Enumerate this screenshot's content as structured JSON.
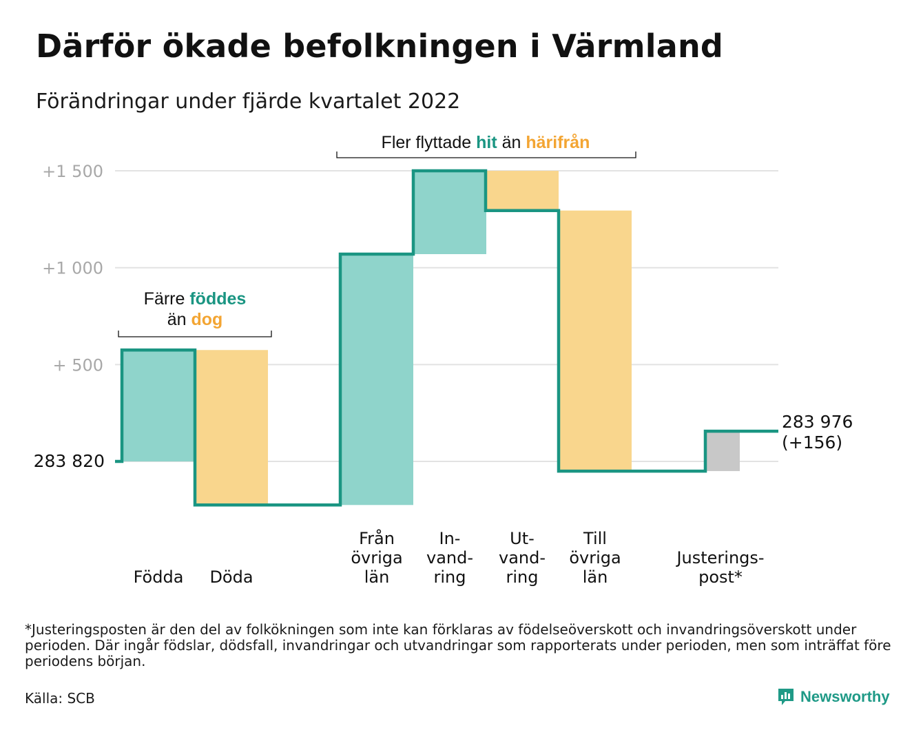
{
  "title": "Därför ökade befolkningen i Värmland",
  "subtitle": "Förändringar under fjärde kvartalet 2022",
  "chart_data": {
    "type": "waterfall",
    "start": {
      "label": "283 820",
      "value": 0
    },
    "end": {
      "label_lines": [
        "283 976",
        "(+156)"
      ],
      "value": 156
    },
    "ylim": [
      -230,
      1500
    ],
    "yticks": [
      {
        "value": 1500,
        "label": "+1 500"
      },
      {
        "value": 1000,
        "label": "+1 000"
      },
      {
        "value": 500,
        "label": "+ 500"
      },
      {
        "value": 0,
        "label": ""
      }
    ],
    "steps": [
      {
        "lines": [
          "Födda"
        ],
        "change": 575,
        "kind": "gain"
      },
      {
        "lines": [
          "Döda"
        ],
        "change": -800,
        "kind": "loss"
      },
      {
        "lines": [
          "Från",
          "övriga",
          "län"
        ],
        "change": 1295,
        "kind": "gain"
      },
      {
        "lines": [
          "In-",
          "vand-",
          "ring"
        ],
        "change": 430,
        "kind": "gain"
      },
      {
        "lines": [
          "Ut-",
          "vand-",
          "ring"
        ],
        "change": -205,
        "kind": "loss"
      },
      {
        "lines": [
          "Till",
          "övriga",
          "län"
        ],
        "change": -1345,
        "kind": "loss"
      },
      {
        "lines": [
          "Justerings-",
          "post*"
        ],
        "change": 206,
        "kind": "adjustment"
      }
    ],
    "annotations": [
      {
        "lines": [
          [
            {
              "t": "Färre ",
              "c": "dark"
            },
            {
              "t": "föddes",
              "c": "teal"
            }
          ],
          [
            {
              "t": "än ",
              "c": "dark"
            },
            {
              "t": "dog",
              "c": "orange"
            }
          ]
        ]
      },
      {
        "lines": [
          [
            {
              "t": "Fler flyttade ",
              "c": "dark"
            },
            {
              "t": "hit",
              "c": "teal"
            },
            {
              "t": " än ",
              "c": "dark"
            },
            {
              "t": "härifrån",
              "c": "orange"
            }
          ]
        ]
      }
    ]
  },
  "colors": {
    "teal": "#1a9582",
    "teal_fill": "#8fd4cb",
    "orange": "#f3a533",
    "orange_fill": "#f9d68d",
    "gray_fill": "#c8c8c8",
    "grid": "#e2e2e2",
    "tick": "#a8a8a8",
    "dark": "#111111"
  },
  "footnote": "*Justeringsposten är den del av folkökningen som inte kan förklaras av födelseöverskott och invandringsöverskott under perioden. Där ingår födslar, dödsfall, invandringar och utvandringar som rapporterats under perioden, men som inträffat före periodens början.",
  "source": "Källa: SCB",
  "logo": {
    "text": "Newsworthy",
    "icon": "newsworthy-chart-icon"
  }
}
